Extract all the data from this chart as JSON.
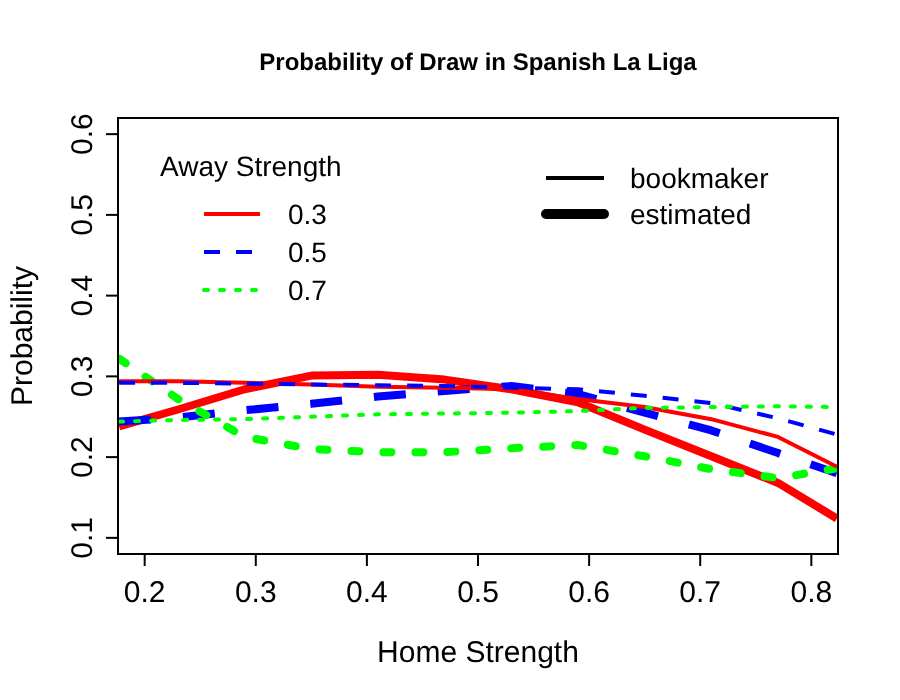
{
  "chart_data": {
    "type": "line",
    "title": "Probability of Draw in Spanish La Liga",
    "xlabel": "Home Strength",
    "ylabel": "Probability",
    "legend_title": "Away Strength",
    "legend": "top left",
    "x": [
      0.177,
      0.23,
      0.29,
      0.35,
      0.41,
      0.47,
      0.53,
      0.59,
      0.65,
      0.71,
      0.77,
      0.823
    ],
    "xlim": [
      0.176,
      0.824
    ],
    "xticks": [
      0.2,
      0.3,
      0.4,
      0.5,
      0.6,
      0.7,
      0.8
    ],
    "ylim": [
      0.08,
      0.62
    ],
    "yticks": [
      0.1,
      0.2,
      0.3,
      0.4,
      0.5,
      0.6
    ],
    "series": [
      {
        "name": "0.3",
        "color": "#ff0000",
        "line_style": "solid",
        "values": [
          0.294,
          0.294,
          0.292,
          0.29,
          0.287,
          0.286,
          0.284,
          0.272,
          0.262,
          0.247,
          0.225,
          0.188
        ]
      },
      {
        "name": "0.5",
        "color": "#0000ff",
        "line_style": "dashed",
        "values": [
          0.292,
          0.292,
          0.291,
          0.29,
          0.289,
          0.288,
          0.286,
          0.284,
          0.276,
          0.267,
          0.248,
          0.228
        ]
      },
      {
        "name": "0.7",
        "color": "#00ff00",
        "line_style": "dotted",
        "values": [
          0.244,
          0.246,
          0.247,
          0.25,
          0.253,
          0.254,
          0.255,
          0.257,
          0.261,
          0.262,
          0.263,
          0.262
        ]
      },
      {
        "color": "#ff0000",
        "line_style": "solid",
        "values": [
          0.238,
          0.259,
          0.284,
          0.301,
          0.302,
          0.296,
          0.284,
          0.268,
          0.234,
          0.201,
          0.168,
          0.124
        ]
      },
      {
        "color": "#0000ff",
        "line_style": "dashed",
        "values": [
          0.244,
          0.249,
          0.258,
          0.266,
          0.275,
          0.282,
          0.288,
          0.278,
          0.255,
          0.233,
          0.205,
          0.18
        ]
      },
      {
        "color": "#00ff00",
        "line_style": "dotted",
        "values": [
          0.322,
          0.272,
          0.225,
          0.21,
          0.206,
          0.206,
          0.211,
          0.215,
          0.201,
          0.185,
          0.174,
          0.186
        ]
      }
    ],
    "annotations": [
      "bookmaker",
      "estimated"
    ]
  }
}
